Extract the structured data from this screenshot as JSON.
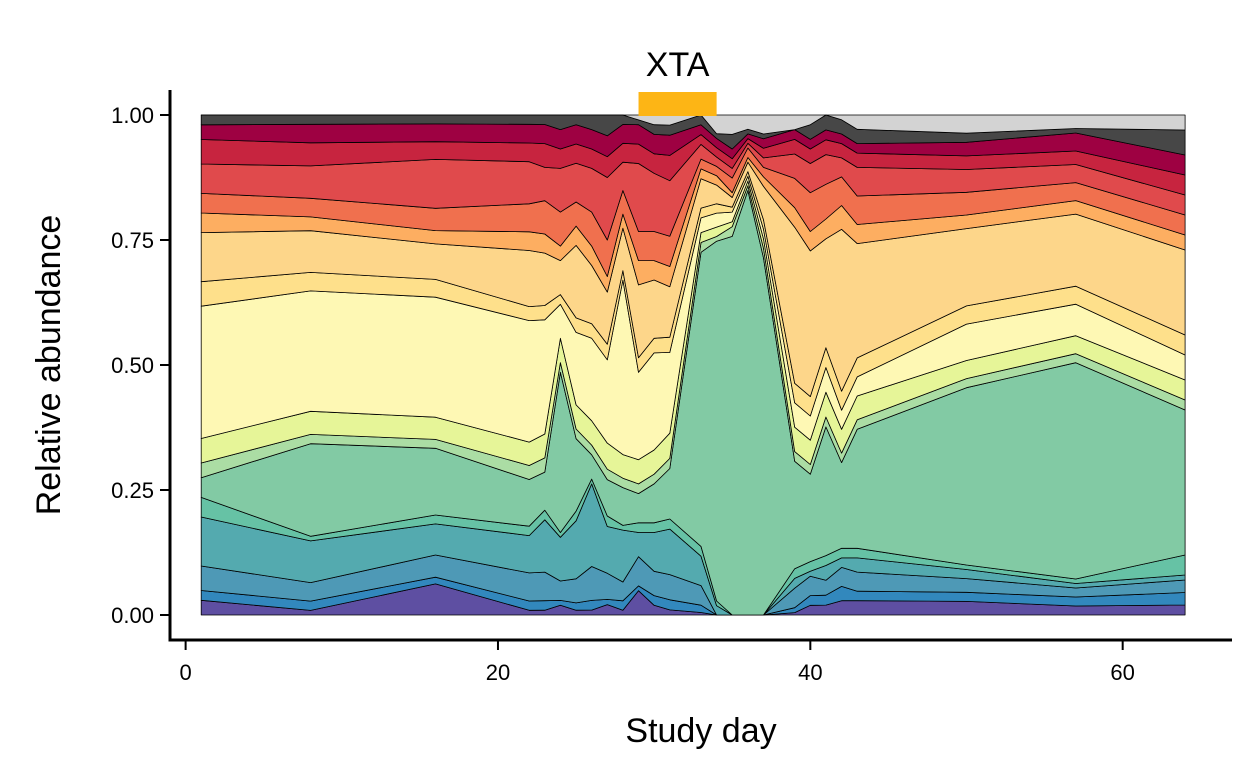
{
  "chart_data": {
    "type": "area",
    "stacked": true,
    "normalized": true,
    "xlabel": "Study day",
    "ylabel": "Relative abundance",
    "xlim": [
      -1,
      67
    ],
    "ylim": [
      -0.05,
      1.05
    ],
    "x_ticks": [
      0,
      20,
      40,
      60
    ],
    "y_ticks": [
      0.0,
      0.25,
      0.5,
      0.75,
      1.0
    ],
    "y_tick_labels": [
      "0.00",
      "0.25",
      "0.50",
      "0.75",
      "1.00"
    ],
    "grid": false,
    "legend": "none",
    "annotation": {
      "label": "XTA",
      "x_start": 29,
      "x_end": 34,
      "color": "#FDB515"
    },
    "x": [
      1,
      8,
      16,
      22,
      23,
      24,
      25,
      26,
      27,
      28,
      29,
      30,
      31,
      33,
      34,
      35,
      36,
      37,
      39,
      40,
      41,
      42,
      43,
      50,
      57,
      64
    ],
    "series": [
      {
        "color": "#5E4FA2",
        "values": [
          0.03,
          0.01,
          0.07,
          0.01,
          0.01,
          0.02,
          0.01,
          0.01,
          0.02,
          0.01,
          0.05,
          0.02,
          0.01,
          0.005,
          0.0,
          0.0,
          0.0,
          0.0,
          0.005,
          0.02,
          0.02,
          0.03,
          0.03,
          0.03,
          0.02,
          0.02
        ]
      },
      {
        "color": "#3288BD",
        "values": [
          0.02,
          0.02,
          0.015,
          0.02,
          0.02,
          0.01,
          0.015,
          0.02,
          0.01,
          0.02,
          0.01,
          0.02,
          0.02,
          0.015,
          0.0,
          0.0,
          0.0,
          0.0,
          0.01,
          0.02,
          0.02,
          0.03,
          0.02,
          0.02,
          0.02,
          0.025
        ]
      },
      {
        "color": "#4E99B6",
        "values": [
          0.05,
          0.04,
          0.05,
          0.06,
          0.06,
          0.04,
          0.05,
          0.07,
          0.05,
          0.04,
          0.06,
          0.05,
          0.05,
          0.04,
          0.0,
          0.0,
          0.0,
          0.0,
          0.04,
          0.04,
          0.03,
          0.04,
          0.04,
          0.03,
          0.02,
          0.025
        ]
      },
      {
        "color": "#54AAAF",
        "values": [
          0.1,
          0.09,
          0.07,
          0.08,
          0.11,
          0.09,
          0.12,
          0.17,
          0.09,
          0.11,
          0.05,
          0.08,
          0.09,
          0.06,
          0.02,
          0.0,
          0.0,
          0.0,
          0.02,
          0.01,
          0.03,
          0.02,
          0.03,
          0.02,
          0.01,
          0.01
        ]
      },
      {
        "color": "#66C2A5",
        "values": [
          0.04,
          0.01,
          0.02,
          0.02,
          0.02,
          0.01,
          0.02,
          0.01,
          0.02,
          0.01,
          0.02,
          0.02,
          0.02,
          0.02,
          0.01,
          0.0,
          0.0,
          0.0,
          0.02,
          0.02,
          0.02,
          0.02,
          0.02,
          0.01,
          0.01,
          0.04
        ]
      },
      {
        "color": "#82CAA4",
        "values": [
          0.04,
          0.2,
          0.15,
          0.1,
          0.08,
          0.33,
          0.15,
          0.05,
          0.07,
          0.08,
          0.06,
          0.08,
          0.1,
          0.6,
          0.77,
          0.78,
          0.9,
          0.75,
          0.22,
          0.18,
          0.26,
          0.18,
          0.25,
          0.39,
          0.48,
          0.29
        ]
      },
      {
        "color": "#ABDDA4",
        "values": [
          0.03,
          0.02,
          0.02,
          0.03,
          0.03,
          0.02,
          0.02,
          0.02,
          0.02,
          0.02,
          0.02,
          0.02,
          0.02,
          0.02,
          0.01,
          0.02,
          0.01,
          0.02,
          0.02,
          0.02,
          0.02,
          0.02,
          0.02,
          0.02,
          0.02,
          0.02
        ]
      },
      {
        "color": "#E6F598",
        "values": [
          0.05,
          0.05,
          0.05,
          0.05,
          0.05,
          0.05,
          0.05,
          0.05,
          0.05,
          0.05,
          0.05,
          0.05,
          0.05,
          0.02,
          0.02,
          0.01,
          0.01,
          0.02,
          0.05,
          0.05,
          0.05,
          0.05,
          0.05,
          0.04,
          0.04,
          0.04
        ]
      },
      {
        "color": "#FEF8B4",
        "values": [
          0.27,
          0.26,
          0.27,
          0.26,
          0.24,
          0.07,
          0.15,
          0.17,
          0.16,
          0.37,
          0.18,
          0.2,
          0.16,
          0.03,
          0.03,
          0.02,
          0.01,
          0.02,
          0.05,
          0.05,
          0.05,
          0.04,
          0.04,
          0.08,
          0.07,
          0.05
        ]
      },
      {
        "color": "#FEE08B",
        "values": [
          0.05,
          0.04,
          0.04,
          0.03,
          0.03,
          0.02,
          0.03,
          0.03,
          0.03,
          0.02,
          0.03,
          0.03,
          0.03,
          0.02,
          0.02,
          0.01,
          0.01,
          0.02,
          0.04,
          0.04,
          0.04,
          0.04,
          0.04,
          0.04,
          0.04,
          0.04
        ]
      },
      {
        "color": "#FDD68A",
        "values": [
          0.1,
          0.09,
          0.08,
          0.12,
          0.11,
          0.07,
          0.15,
          0.12,
          0.1,
          0.09,
          0.15,
          0.12,
          0.1,
          0.06,
          0.04,
          0.02,
          0.02,
          0.07,
          0.32,
          0.3,
          0.22,
          0.34,
          0.24,
          0.17,
          0.16,
          0.17
        ]
      },
      {
        "color": "#FDAE61",
        "values": [
          0.04,
          0.03,
          0.03,
          0.04,
          0.04,
          0.03,
          0.04,
          0.04,
          0.03,
          0.03,
          0.05,
          0.04,
          0.04,
          0.02,
          0.02,
          0.01,
          0.01,
          0.02,
          0.04,
          0.04,
          0.04,
          0.05,
          0.04,
          0.03,
          0.03,
          0.03
        ]
      },
      {
        "color": "#F0704E",
        "values": [
          0.04,
          0.04,
          0.05,
          0.06,
          0.07,
          0.07,
          0.05,
          0.07,
          0.07,
          0.05,
          0.06,
          0.06,
          0.06,
          0.02,
          0.02,
          0.03,
          0.02,
          0.02,
          0.06,
          0.08,
          0.07,
          0.06,
          0.06,
          0.05,
          0.04,
          0.04
        ]
      },
      {
        "color": "#E04A4C",
        "values": [
          0.06,
          0.07,
          0.11,
          0.09,
          0.07,
          0.09,
          0.08,
          0.09,
          0.12,
          0.06,
          0.14,
          0.12,
          0.11,
          0.03,
          0.02,
          0.02,
          0.01,
          0.02,
          0.05,
          0.06,
          0.06,
          0.04,
          0.06,
          0.05,
          0.04,
          0.04
        ]
      },
      {
        "color": "#C7243F",
        "values": [
          0.05,
          0.05,
          0.04,
          0.04,
          0.05,
          0.04,
          0.04,
          0.04,
          0.04,
          0.04,
          0.04,
          0.04,
          0.05,
          0.02,
          0.02,
          0.02,
          0.01,
          0.02,
          0.03,
          0.03,
          0.03,
          0.03,
          0.03,
          0.03,
          0.03,
          0.04
        ]
      },
      {
        "color": "#9E0142",
        "values": [
          0.03,
          0.04,
          0.04,
          0.04,
          0.04,
          0.04,
          0.04,
          0.04,
          0.04,
          0.04,
          0.04,
          0.04,
          0.04,
          0.02,
          0.02,
          0.02,
          0.01,
          0.02,
          0.02,
          0.02,
          0.02,
          0.02,
          0.02,
          0.03,
          0.04,
          0.04
        ]
      },
      {
        "color": "#474747",
        "values": [
          0.02,
          0.02,
          0.02,
          0.02,
          0.02,
          0.03,
          0.02,
          0.03,
          0.04,
          0.02,
          0.01,
          0.02,
          0.02,
          0.02,
          0.01,
          0.03,
          0.01,
          0.01,
          0.0,
          0.03,
          0.03,
          0.03,
          0.03,
          0.02,
          0.01,
          0.05
        ]
      },
      {
        "color": "#D3D3D3",
        "values": [
          0.0,
          0.0,
          0.0,
          0.0,
          0.0,
          0.0,
          0.0,
          0.0,
          0.0,
          0.0,
          0.01,
          0.02,
          0.02,
          0.0,
          0.04,
          0.04,
          0.03,
          0.04,
          0.03,
          0.02,
          0.0,
          0.01,
          0.03,
          0.04,
          0.03,
          0.03
        ]
      }
    ]
  }
}
